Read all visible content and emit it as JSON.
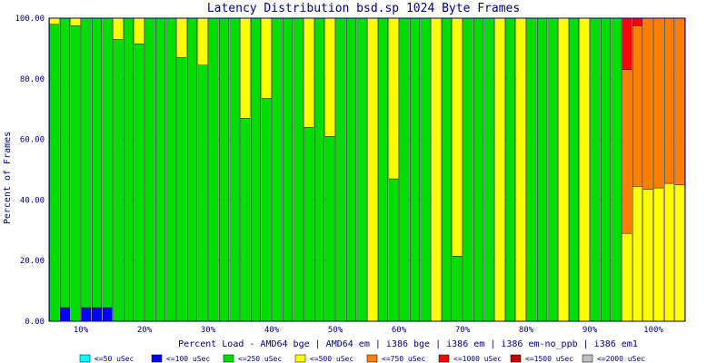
{
  "chart_data": {
    "type": "bar",
    "stacked": true,
    "title": "Latency Distribution bsd.sp 1024 Byte Frames",
    "xlabel": "Percent Load - AMD64 bge | AMD64 em | i386 bge | i386 em | i386 em-no_ppb | i386 em1",
    "ylabel": "Percent of Frames",
    "ylim": [
      0,
      100
    ],
    "yticks": [
      "0.00",
      "20.00",
      "40.00",
      "60.00",
      "80.00",
      "100.00"
    ],
    "grid": true,
    "legend_position": "bottom",
    "load_groups": [
      "10%",
      "20%",
      "30%",
      "40%",
      "50%",
      "60%",
      "70%",
      "80%",
      "90%",
      "100%"
    ],
    "configurations": [
      "AMD64 bge",
      "AMD64 em",
      "i386 bge",
      "i386 em",
      "i386 em-no_ppb",
      "i386 em1"
    ],
    "series": [
      {
        "name": "<=50 uSec",
        "color": "#00ffff"
      },
      {
        "name": "<=100 uSec",
        "color": "#0000ff"
      },
      {
        "name": "<=250 uSec",
        "color": "#00dd00"
      },
      {
        "name": "<=500 uSec",
        "color": "#ffff00"
      },
      {
        "name": "<=750 uSec",
        "color": "#ff8000"
      },
      {
        "name": "<=1000 uSec",
        "color": "#ff0000"
      },
      {
        "name": "<=1500 uSec",
        "color": "#c00000"
      },
      {
        "name": "<=2000 uSec",
        "color": "#c0c0c0"
      }
    ],
    "bars": [
      [
        [
          0,
          0,
          98,
          2,
          0,
          0,
          0,
          0
        ],
        [
          0,
          4.5,
          95.5,
          0,
          0,
          0,
          0,
          0
        ],
        [
          0,
          0,
          97.5,
          2.5,
          0,
          0,
          0,
          0
        ],
        [
          0,
          4.5,
          95.5,
          0,
          0,
          0,
          0,
          0
        ],
        [
          0,
          4.5,
          95.5,
          0,
          0,
          0,
          0,
          0
        ],
        [
          0,
          4.5,
          95.5,
          0,
          0,
          0,
          0,
          0
        ]
      ],
      [
        [
          0,
          0,
          93,
          7,
          0,
          0,
          0,
          0
        ],
        [
          0,
          0,
          100,
          0,
          0,
          0,
          0,
          0
        ],
        [
          0,
          0,
          91.5,
          8.5,
          0,
          0,
          0,
          0
        ],
        [
          0,
          0,
          100,
          0,
          0,
          0,
          0,
          0
        ],
        [
          0,
          0,
          100,
          0,
          0,
          0,
          0,
          0
        ],
        [
          0,
          0,
          100,
          0,
          0,
          0,
          0,
          0
        ]
      ],
      [
        [
          0,
          0,
          87,
          13,
          0,
          0,
          0,
          0
        ],
        [
          0,
          0,
          100,
          0,
          0,
          0,
          0,
          0
        ],
        [
          0,
          0,
          84.5,
          15.5,
          0,
          0,
          0,
          0
        ],
        [
          0,
          0,
          100,
          0,
          0,
          0,
          0,
          0
        ],
        [
          0,
          0,
          100,
          0,
          0,
          0,
          0,
          0
        ],
        [
          0,
          0,
          100,
          0,
          0,
          0,
          0,
          0
        ]
      ],
      [
        [
          0,
          0,
          67,
          33,
          0,
          0,
          0,
          0
        ],
        [
          0,
          0,
          100,
          0,
          0,
          0,
          0,
          0
        ],
        [
          0,
          0,
          73.5,
          26.5,
          0,
          0,
          0,
          0
        ],
        [
          0,
          0,
          100,
          0,
          0,
          0,
          0,
          0
        ],
        [
          0,
          0,
          100,
          0,
          0,
          0,
          0,
          0
        ],
        [
          0,
          0,
          100,
          0,
          0,
          0,
          0,
          0
        ]
      ],
      [
        [
          0,
          0,
          64,
          36,
          0,
          0,
          0,
          0
        ],
        [
          0,
          0,
          100,
          0,
          0,
          0,
          0,
          0
        ],
        [
          0,
          0,
          61,
          39,
          0,
          0,
          0,
          0
        ],
        [
          0,
          0,
          100,
          0,
          0,
          0,
          0,
          0
        ],
        [
          0,
          0,
          100,
          0,
          0,
          0,
          0,
          0
        ],
        [
          0,
          0,
          100,
          0,
          0,
          0,
          0,
          0
        ]
      ],
      [
        [
          0,
          0,
          0,
          100,
          0,
          0,
          0,
          0
        ],
        [
          0,
          0,
          100,
          0,
          0,
          0,
          0,
          0
        ],
        [
          0,
          0,
          47,
          53,
          0,
          0,
          0,
          0
        ],
        [
          0,
          0,
          100,
          0,
          0,
          0,
          0,
          0
        ],
        [
          0,
          0,
          100,
          0,
          0,
          0,
          0,
          0
        ],
        [
          0,
          0,
          100,
          0,
          0,
          0,
          0,
          0
        ]
      ],
      [
        [
          0,
          0,
          0,
          100,
          0,
          0,
          0,
          0
        ],
        [
          0,
          0,
          100,
          0,
          0,
          0,
          0,
          0
        ],
        [
          0,
          0,
          21.5,
          78.5,
          0,
          0,
          0,
          0
        ],
        [
          0,
          0,
          100,
          0,
          0,
          0,
          0,
          0
        ],
        [
          0,
          0,
          100,
          0,
          0,
          0,
          0,
          0
        ],
        [
          0,
          0,
          100,
          0,
          0,
          0,
          0,
          0
        ]
      ],
      [
        [
          0,
          0,
          0,
          100,
          0,
          0,
          0,
          0
        ],
        [
          0,
          0,
          100,
          0,
          0,
          0,
          0,
          0
        ],
        [
          0,
          0,
          0,
          100,
          0,
          0,
          0,
          0
        ],
        [
          0,
          0,
          100,
          0,
          0,
          0,
          0,
          0
        ],
        [
          0,
          0,
          100,
          0,
          0,
          0,
          0,
          0
        ],
        [
          0,
          0,
          100,
          0,
          0,
          0,
          0,
          0
        ]
      ],
      [
        [
          0,
          0,
          0,
          100,
          0,
          0,
          0,
          0
        ],
        [
          0,
          0,
          100,
          0,
          0,
          0,
          0,
          0
        ],
        [
          0,
          0,
          0,
          100,
          0,
          0,
          0,
          0
        ],
        [
          0,
          0,
          100,
          0,
          0,
          0,
          0,
          0
        ],
        [
          0,
          0,
          100,
          0,
          0,
          0,
          0,
          0
        ],
        [
          0,
          0,
          100,
          0,
          0,
          0,
          0,
          0
        ]
      ],
      [
        [
          0,
          0,
          0,
          29,
          54,
          17,
          0,
          0
        ],
        [
          0,
          0,
          0,
          44.5,
          53,
          2.5,
          0,
          0
        ],
        [
          0,
          0,
          0,
          43.5,
          56.5,
          0,
          0,
          0
        ],
        [
          0,
          0,
          0,
          44,
          56,
          0,
          0,
          0
        ],
        [
          0,
          0,
          0,
          45.5,
          54.5,
          0,
          0,
          0
        ],
        [
          0,
          0,
          0,
          45,
          55,
          0,
          0,
          0
        ]
      ]
    ]
  }
}
